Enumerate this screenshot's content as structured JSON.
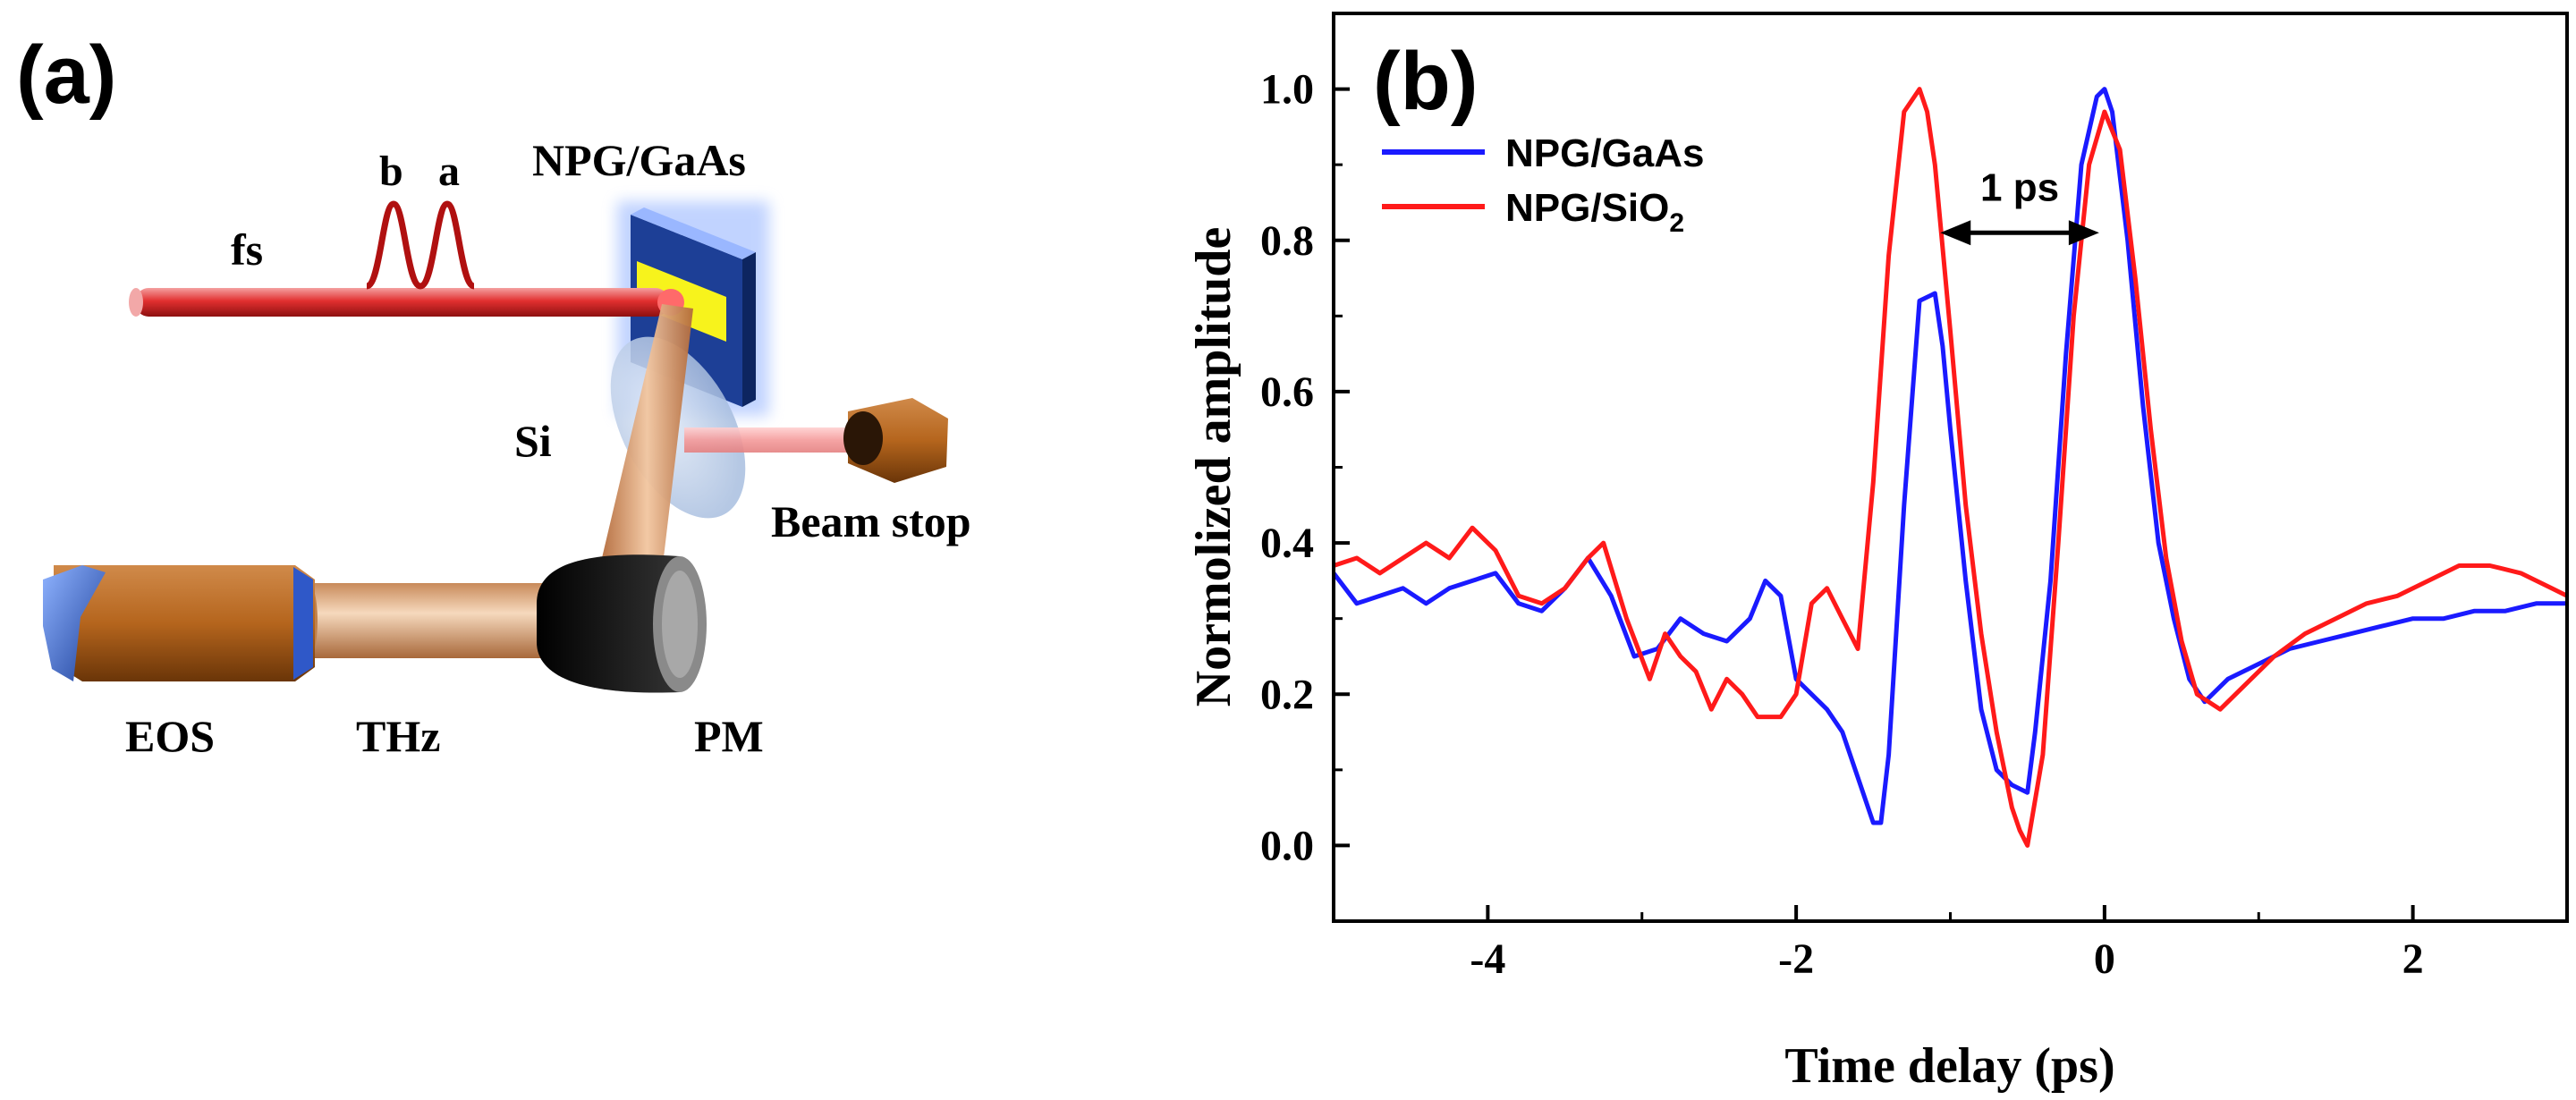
{
  "panel_a": {
    "label": "(a)",
    "labels": {
      "fs": "fs",
      "pulse_b": "b",
      "pulse_a": "a",
      "sample": "NPG/GaAs",
      "si": "Si",
      "beam_stop": "Beam stop",
      "eos": "EOS",
      "thz": "THz",
      "pm": "PM"
    }
  },
  "panel_b": {
    "label": "(b)",
    "annotation": "1 ps"
  },
  "colors": {
    "npg_gaas": "#1a1aff",
    "npg_sio2": "#ff1a1a",
    "beam": "#d92020",
    "pulse": "#b01010",
    "brass": "#b5651d",
    "axis": "#000000"
  },
  "chart_data": {
    "type": "line",
    "title": "",
    "xlabel": "Time delay (ps)",
    "ylabel": "Normolized amplitude",
    "xlim": [
      -5,
      3
    ],
    "ylim": [
      -0.1,
      1.1
    ],
    "xticks": [
      -4,
      -2,
      0,
      2
    ],
    "xtick_labels": [
      "-4",
      "-2",
      "0",
      "2"
    ],
    "yticks": [
      0.0,
      0.2,
      0.4,
      0.6,
      0.8,
      1.0
    ],
    "ytick_labels": [
      "0.0",
      "0.2",
      "0.4",
      "0.6",
      "0.8",
      "1.0"
    ],
    "legend_position": "top-left",
    "series": [
      {
        "name": "NPG/GaAs",
        "legend_main": "NPG/GaAs",
        "legend_sub": "",
        "color": "#1a1aff",
        "x": [
          -5.0,
          -4.85,
          -4.7,
          -4.55,
          -4.4,
          -4.25,
          -4.1,
          -3.95,
          -3.8,
          -3.65,
          -3.5,
          -3.35,
          -3.2,
          -3.05,
          -2.9,
          -2.75,
          -2.6,
          -2.45,
          -2.3,
          -2.2,
          -2.1,
          -2.0,
          -1.9,
          -1.8,
          -1.7,
          -1.6,
          -1.5,
          -1.45,
          -1.4,
          -1.3,
          -1.2,
          -1.1,
          -1.05,
          -1.0,
          -0.9,
          -0.8,
          -0.7,
          -0.6,
          -0.5,
          -0.45,
          -0.35,
          -0.25,
          -0.15,
          -0.05,
          0.0,
          0.05,
          0.15,
          0.25,
          0.35,
          0.45,
          0.55,
          0.65,
          0.8,
          1.0,
          1.2,
          1.4,
          1.6,
          1.8,
          2.0,
          2.2,
          2.4,
          2.6,
          2.8,
          3.0
        ],
        "y": [
          0.36,
          0.32,
          0.33,
          0.34,
          0.32,
          0.34,
          0.35,
          0.36,
          0.32,
          0.31,
          0.34,
          0.38,
          0.33,
          0.25,
          0.26,
          0.3,
          0.28,
          0.27,
          0.3,
          0.35,
          0.33,
          0.22,
          0.2,
          0.18,
          0.15,
          0.09,
          0.03,
          0.03,
          0.12,
          0.45,
          0.72,
          0.73,
          0.66,
          0.55,
          0.35,
          0.18,
          0.1,
          0.08,
          0.07,
          0.15,
          0.35,
          0.65,
          0.9,
          0.99,
          1.0,
          0.97,
          0.8,
          0.58,
          0.4,
          0.3,
          0.22,
          0.19,
          0.22,
          0.24,
          0.26,
          0.27,
          0.28,
          0.29,
          0.3,
          0.3,
          0.31,
          0.31,
          0.32,
          0.32
        ]
      },
      {
        "name": "NPG/SiO2",
        "legend_main": "NPG/SiO",
        "legend_sub": "2",
        "color": "#ff1a1a",
        "x": [
          -5.0,
          -4.85,
          -4.7,
          -4.55,
          -4.4,
          -4.25,
          -4.1,
          -3.95,
          -3.8,
          -3.65,
          -3.5,
          -3.35,
          -3.25,
          -3.1,
          -2.95,
          -2.85,
          -2.75,
          -2.65,
          -2.55,
          -2.45,
          -2.35,
          -2.25,
          -2.1,
          -2.0,
          -1.9,
          -1.8,
          -1.7,
          -1.6,
          -1.5,
          -1.4,
          -1.3,
          -1.2,
          -1.15,
          -1.1,
          -1.0,
          -0.9,
          -0.8,
          -0.7,
          -0.6,
          -0.55,
          -0.5,
          -0.4,
          -0.3,
          -0.2,
          -0.1,
          0.0,
          0.1,
          0.2,
          0.3,
          0.4,
          0.5,
          0.6,
          0.75,
          0.9,
          1.1,
          1.3,
          1.5,
          1.7,
          1.9,
          2.1,
          2.3,
          2.5,
          2.7,
          2.9,
          3.0
        ],
        "y": [
          0.37,
          0.38,
          0.36,
          0.38,
          0.4,
          0.38,
          0.42,
          0.39,
          0.33,
          0.32,
          0.34,
          0.38,
          0.4,
          0.3,
          0.22,
          0.28,
          0.25,
          0.23,
          0.18,
          0.22,
          0.2,
          0.17,
          0.17,
          0.2,
          0.32,
          0.34,
          0.3,
          0.26,
          0.48,
          0.78,
          0.97,
          1.0,
          0.97,
          0.9,
          0.68,
          0.45,
          0.28,
          0.15,
          0.05,
          0.02,
          0.0,
          0.12,
          0.4,
          0.7,
          0.9,
          0.97,
          0.92,
          0.75,
          0.55,
          0.38,
          0.27,
          0.2,
          0.18,
          0.21,
          0.25,
          0.28,
          0.3,
          0.32,
          0.33,
          0.35,
          0.37,
          0.37,
          0.36,
          0.34,
          0.33
        ]
      }
    ]
  }
}
